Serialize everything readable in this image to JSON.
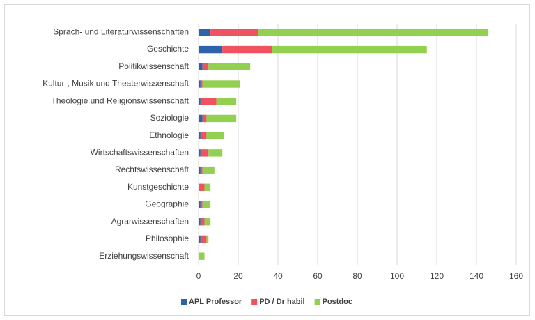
{
  "chart_data": {
    "type": "stacked-bar-horizontal",
    "categories": [
      "Sprach- und Literaturwissenschaften",
      "Geschichte",
      "Politikwissenschaft",
      "Kultur-, Musik und Theaterwissenschaft",
      "Theologie und Religionswissenschaft",
      "Soziologie",
      "Ethnologie",
      "Wirtschaftswissenschaften",
      "Rechtswissenschaft",
      "Kunstgeschichte",
      "Geographie",
      "Agrarwissenschaften",
      "Philosophie",
      "Erziehungswissenschaft"
    ],
    "series": [
      {
        "name": "APL Professor",
        "color": "#2e62ab",
        "values": [
          6,
          12,
          2,
          1,
          1,
          2,
          1,
          1,
          1,
          0,
          1,
          1,
          1,
          0
        ]
      },
      {
        "name": "PD / Dr habil",
        "color": "#f05260",
        "values": [
          24,
          25,
          3,
          1,
          8,
          2,
          3,
          4,
          1,
          3,
          1,
          2,
          3,
          0
        ]
      },
      {
        "name": "Postdoc",
        "color": "#92d050",
        "values": [
          116,
          78,
          21,
          19,
          10,
          15,
          9,
          7,
          6,
          3,
          4,
          3,
          1,
          3
        ]
      }
    ],
    "xlim": [
      0,
      160
    ],
    "xticks": [
      0,
      20,
      40,
      60,
      80,
      100,
      120,
      140,
      160
    ],
    "grid": true,
    "legend": "bottom"
  }
}
